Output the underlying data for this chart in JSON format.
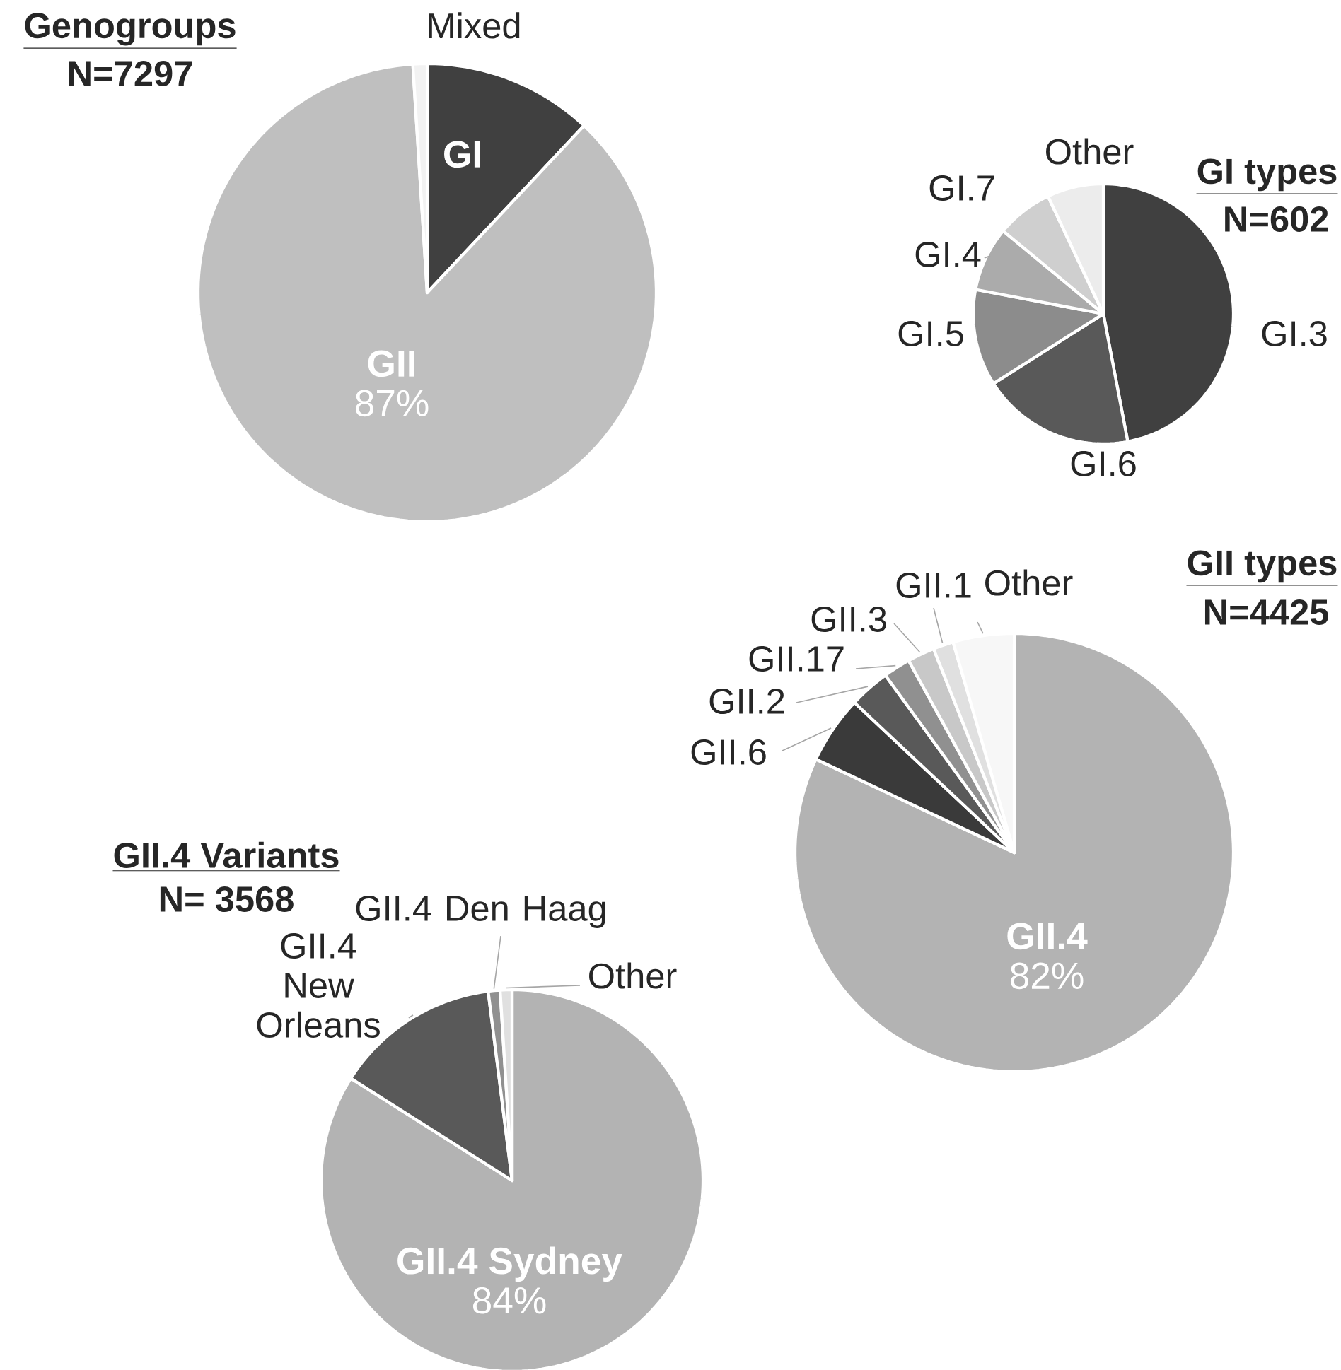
{
  "chart_data": [
    {
      "type": "pie",
      "title": "Genogroups",
      "subtitle": "N=7297",
      "categories": [
        "GI",
        "GII",
        "Mixed"
      ],
      "values": [
        12,
        87,
        1
      ],
      "colors": [
        "#404040",
        "#bfbfbf",
        "#f2f2f2"
      ],
      "value_labels": [
        null,
        "87%",
        null
      ]
    },
    {
      "type": "pie",
      "title": "GI types",
      "subtitle": "N=602",
      "categories": [
        "GI.3",
        "GI.6",
        "GI.5",
        "GI.4",
        "GI.7",
        "Other"
      ],
      "values": [
        47,
        19,
        12,
        8,
        7,
        7
      ],
      "colors": [
        "#404040",
        "#595959",
        "#8c8c8c",
        "#ababab",
        "#cfcfcf",
        "#ececec"
      ]
    },
    {
      "type": "pie",
      "title": "GII types",
      "subtitle": "N=4425",
      "categories": [
        "GII.4",
        "GII.6",
        "GII.2",
        "GII.17",
        "GII.3",
        "GII.1",
        "Other"
      ],
      "values": [
        82,
        5,
        3,
        2,
        2,
        1.5,
        4.5
      ],
      "colors": [
        "#b3b3b3",
        "#3a3a3a",
        "#595959",
        "#909090",
        "#c8c8c8",
        "#e0e0e0",
        "#f7f7f7"
      ],
      "value_labels": [
        "82%",
        null,
        null,
        null,
        null,
        null,
        null
      ]
    },
    {
      "type": "pie",
      "title": "GII.4 Variants",
      "subtitle": "N= 3568",
      "categories": [
        "GII.4 Sydney",
        "GII.4 New Orleans",
        "GII.4 Den Haag",
        "Other"
      ],
      "values": [
        84,
        14,
        1,
        1
      ],
      "colors": [
        "#b3b3b3",
        "#595959",
        "#909090",
        "#e0e0e0"
      ],
      "value_labels": [
        "84%",
        null,
        null,
        null
      ]
    }
  ]
}
